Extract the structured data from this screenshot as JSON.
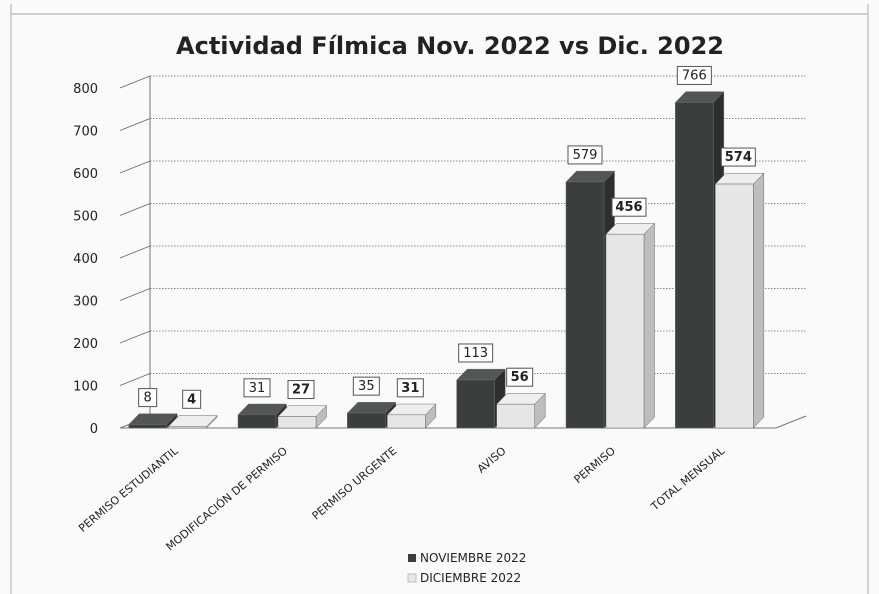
{
  "chart_data": {
    "type": "bar",
    "title": "Actividad Fílmica Nov. 2022 vs Dic. 2022",
    "categories": [
      "PERMISO ESTUDIANTIL",
      "MODIFICACIÓN DE PERMISO",
      "PERMISO URGENTE",
      "AVISO",
      "PERMISO",
      "TOTAL MENSUAL"
    ],
    "series": [
      {
        "name": "NOVIEMBRE 2022",
        "values": [
          8,
          31,
          35,
          113,
          579,
          766
        ],
        "color": "#3a3f3d"
      },
      {
        "name": "DICIEMBRE 2022",
        "values": [
          4,
          27,
          31,
          56,
          456,
          574
        ],
        "color": "#e6e6e6"
      }
    ],
    "ylim": [
      0,
      800
    ],
    "yticks": [
      0,
      100,
      200,
      300,
      400,
      500,
      600,
      700,
      800
    ],
    "grid": true,
    "legend": "bottom"
  }
}
